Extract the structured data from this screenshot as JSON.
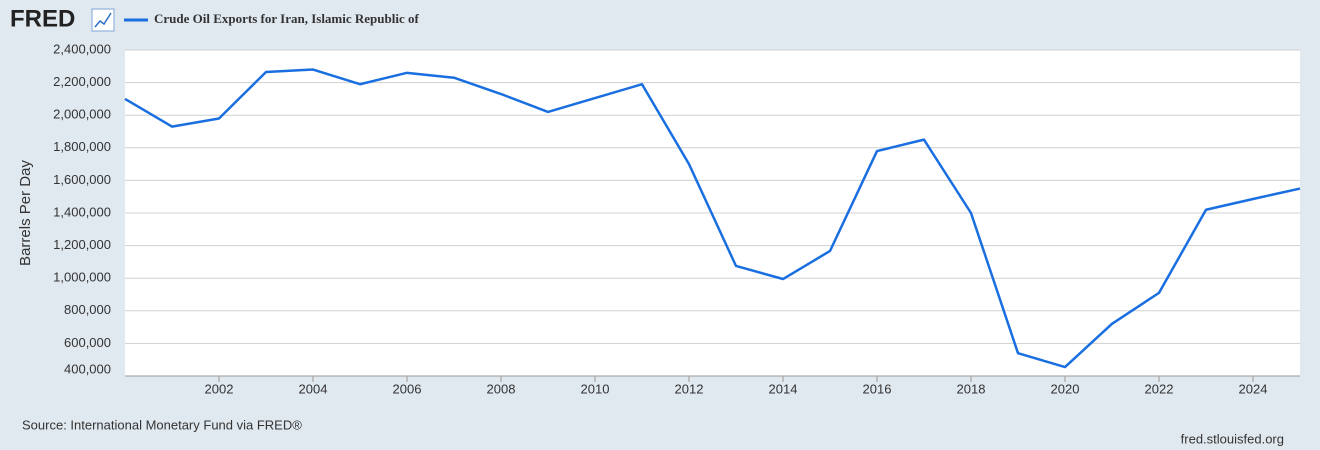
{
  "chart_data": {
    "type": "line",
    "brand": "FRED",
    "y_label": "Barrels Per Day",
    "source": "Source: International Monetary Fund via FRED®",
    "site": "fred.stlouisfed.org",
    "x": [
      2000,
      2001,
      2002,
      2003,
      2004,
      2005,
      2006,
      2007,
      2008,
      2009,
      2010,
      2011,
      2012,
      2013,
      2014,
      2015,
      2016,
      2017,
      2018,
      2019,
      2020,
      2021,
      2022,
      2023,
      2024,
      2025
    ],
    "series": [
      {
        "name": "Crude Oil Exports for Iran, Islamic Republic of",
        "color": "#1a6fe0",
        "values": [
          2100000,
          1930000,
          1980000,
          2265000,
          2280000,
          2190000,
          2260000,
          2230000,
          2130000,
          2020000,
          2105000,
          2190000,
          1700000,
          1075000,
          995000,
          1167000,
          1780000,
          1850000,
          1400000,
          540000,
          455000,
          720000,
          910000,
          1420000,
          1486000,
          1550000
        ]
      }
    ],
    "xlim": [
      2000,
      2025
    ],
    "xticks": [
      2002,
      2004,
      2006,
      2008,
      2010,
      2012,
      2014,
      2016,
      2018,
      2020,
      2022,
      2024
    ],
    "ylim": [
      400000,
      2400000
    ],
    "yticks": [
      {
        "value": 400000,
        "label": "400,000"
      },
      {
        "value": 600000,
        "label": "600,000"
      },
      {
        "value": 800000,
        "label": "800,000"
      },
      {
        "value": 1000000,
        "label": "1,000,000"
      },
      {
        "value": 1200000,
        "label": "1,200,000"
      },
      {
        "value": 1400000,
        "label": "1,400,000"
      },
      {
        "value": 1600000,
        "label": "1,600,000"
      },
      {
        "value": 1800000,
        "label": "1,800,000"
      },
      {
        "value": 2000000,
        "label": "2,000,000"
      },
      {
        "value": 2200000,
        "label": "2,200,000"
      },
      {
        "value": 2400000,
        "label": "2,400,000"
      }
    ],
    "grid": true
  }
}
